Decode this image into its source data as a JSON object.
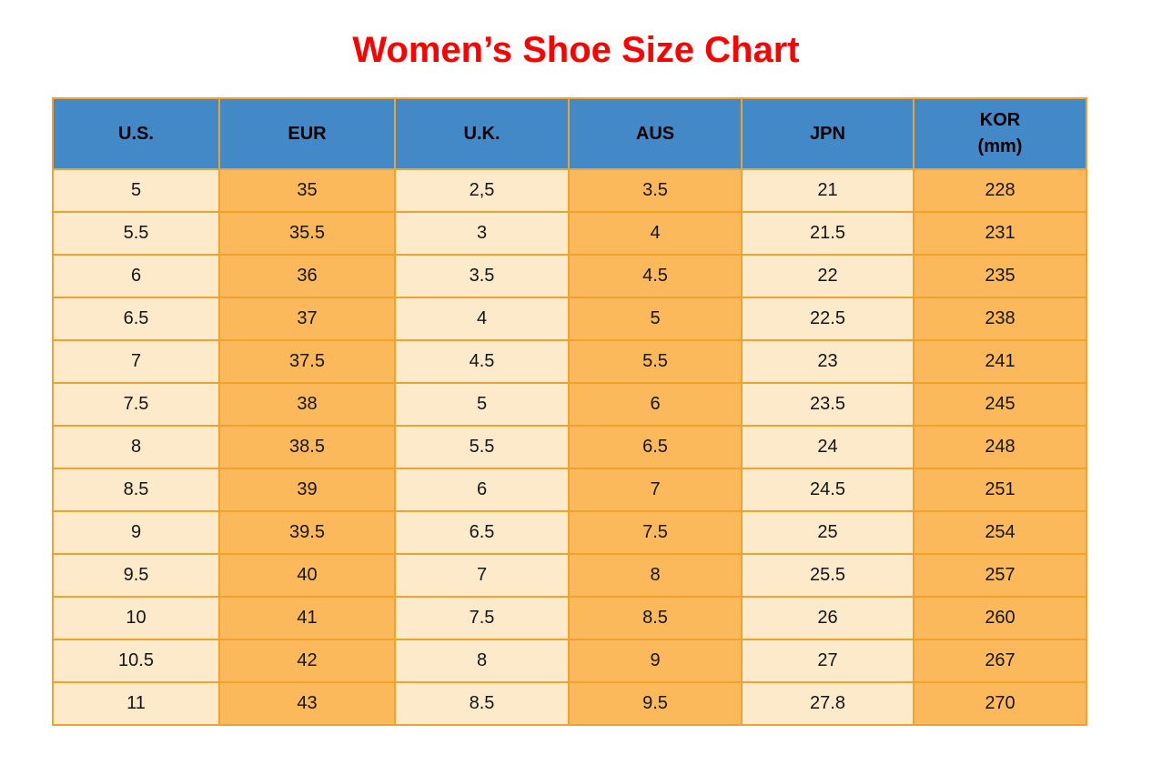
{
  "title": {
    "text": "Women’s Shoe Size Chart"
  },
  "colors": {
    "page_bg": "#ffffff",
    "title": "#ff0000",
    "header_bg": "#4389c8",
    "header_text": "#000000",
    "cell_text": "#151515",
    "col_light": "#fdeacb",
    "col_dark": "#fbb95c",
    "border": "#f0a22e"
  },
  "chart_data": {
    "type": "table",
    "title": "Women’s Shoe Size Chart",
    "columns": [
      {
        "key": "us",
        "label": "U.S.",
        "sublabel": "",
        "shade": "light"
      },
      {
        "key": "eur",
        "label": "EUR",
        "sublabel": "",
        "shade": "dark"
      },
      {
        "key": "uk",
        "label": "U.K.",
        "sublabel": "",
        "shade": "light"
      },
      {
        "key": "aus",
        "label": "AUS",
        "sublabel": "",
        "shade": "dark"
      },
      {
        "key": "jpn",
        "label": "JPN",
        "sublabel": "",
        "shade": "light"
      },
      {
        "key": "kor",
        "label": "KOR",
        "sublabel": "(mm)",
        "shade": "dark"
      }
    ],
    "rows": [
      [
        "5",
        "35",
        "2,5",
        "3.5",
        "21",
        "228"
      ],
      [
        "5.5",
        "35.5",
        "3",
        "4",
        "21.5",
        "231"
      ],
      [
        "6",
        "36",
        "3.5",
        "4.5",
        "22",
        "235"
      ],
      [
        "6.5",
        "37",
        "4",
        "5",
        "22.5",
        "238"
      ],
      [
        "7",
        "37.5",
        "4.5",
        "5.5",
        "23",
        "241"
      ],
      [
        "7.5",
        "38",
        "5",
        "6",
        "23.5",
        "245"
      ],
      [
        "8",
        "38.5",
        "5.5",
        "6.5",
        "24",
        "248"
      ],
      [
        "8.5",
        "39",
        "6",
        "7",
        "24.5",
        "251"
      ],
      [
        "9",
        "39.5",
        "6.5",
        "7.5",
        "25",
        "254"
      ],
      [
        "9.5",
        "40",
        "7",
        "8",
        "25.5",
        "257"
      ],
      [
        "10",
        "41",
        "7.5",
        "8.5",
        "26",
        "260"
      ],
      [
        "10.5",
        "42",
        "8",
        "9",
        "27",
        "267"
      ],
      [
        "11",
        "43",
        "8.5",
        "9.5",
        "27.8",
        "270"
      ]
    ]
  }
}
